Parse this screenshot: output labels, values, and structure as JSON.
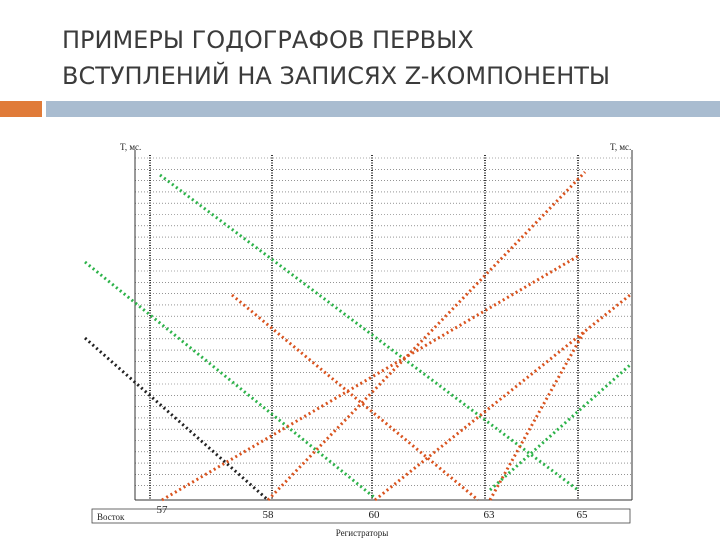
{
  "header": {
    "title_line1": "ПРИМЕРЫ ГОДОГРАФОВ ПЕРВЫХ",
    "title_line2": "ВСТУПЛЕНИЙ НА ЗАПИСЯХ Z-КОМПОНЕНТЫ"
  },
  "figure": {
    "y_label_left": "T, мс.",
    "y_label_right": "T, мс.",
    "direction": "Восток",
    "x_label": "Регистраторы",
    "stations": [
      "57",
      "58",
      "60",
      "63",
      "65"
    ]
  }
}
